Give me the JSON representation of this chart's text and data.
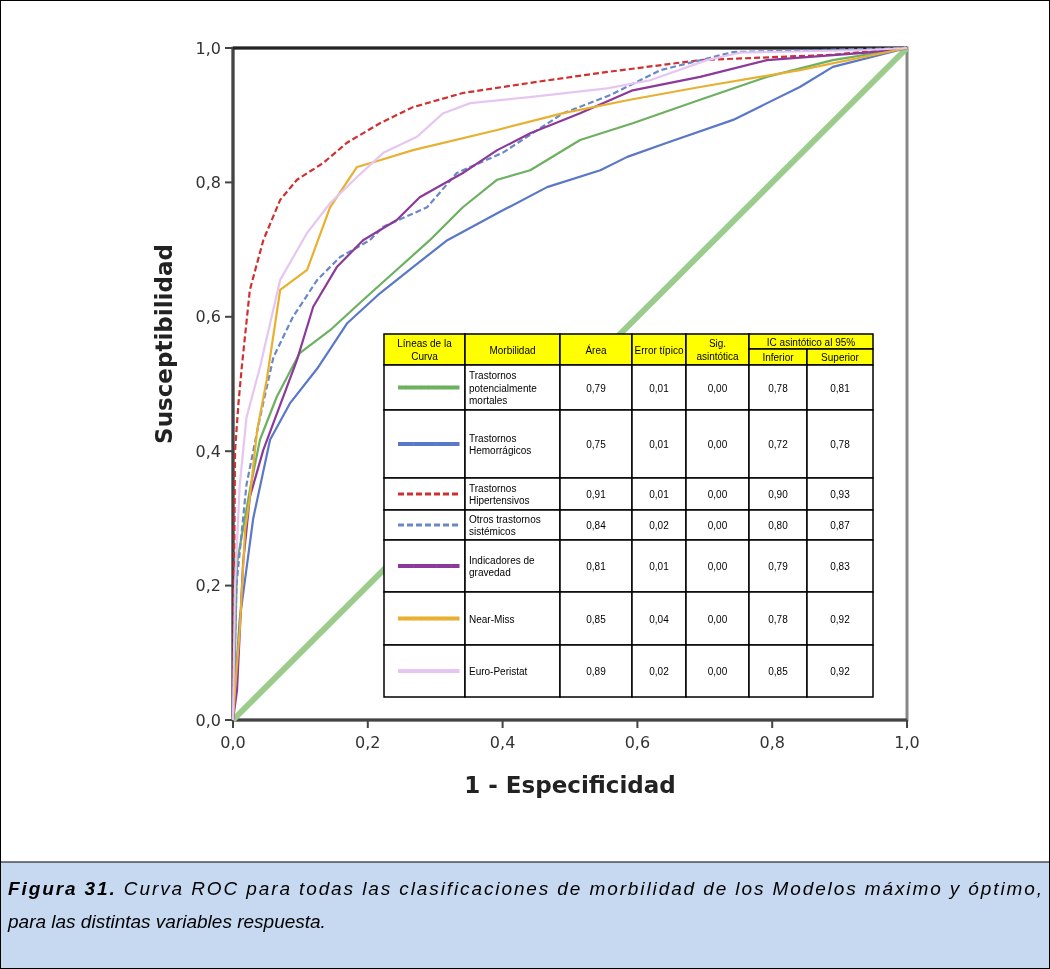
{
  "chart_data": {
    "type": "line",
    "xlabel": "1 - Especificidad",
    "ylabel": "Susceptibilidad",
    "xlim": [
      0,
      1
    ],
    "ylim": [
      0,
      1
    ],
    "xticks": [
      {
        "value": 0,
        "label": "0,0"
      },
      {
        "value": 0.2,
        "label": "0,2"
      },
      {
        "value": 0.4,
        "label": "0,4"
      },
      {
        "value": 0.6,
        "label": "0,6"
      },
      {
        "value": 0.8,
        "label": "0,8"
      },
      {
        "value": 1,
        "label": "1,0"
      }
    ],
    "yticks": [
      {
        "value": 0,
        "label": "0,0"
      },
      {
        "value": 0.2,
        "label": "0,2"
      },
      {
        "value": 0.4,
        "label": "0,4"
      },
      {
        "value": 0.6,
        "label": "0,6"
      },
      {
        "value": 0.8,
        "label": "0,8"
      },
      {
        "value": 1,
        "label": "1,0"
      }
    ],
    "grid": false,
    "legend": "bottom",
    "line_style": "solid",
    "marker": "none",
    "series": [
      {
        "color": "#9ccc8c",
        "x": [
          0,
          1
        ],
        "values": [
          0,
          1
        ]
      },
      {
        "name": "Trastornos potencialmente mortales",
        "color": "#6cb060",
        "x": [
          0,
          0.003,
          0.006,
          0.025,
          0.04,
          0.065,
          0.099,
          0.144,
          0.193,
          0.243,
          0.292,
          0.341,
          0.392,
          0.441,
          0.515,
          0.593,
          0.693,
          0.792,
          0.89,
          1
        ],
        "values": [
          0,
          0.1,
          0.234,
          0.342,
          0.417,
          0.481,
          0.546,
          0.58,
          0.625,
          0.67,
          0.714,
          0.763,
          0.804,
          0.818,
          0.863,
          0.888,
          0.923,
          0.957,
          0.982,
          1
        ]
      },
      {
        "name": "Trastornos Hemorrágicos",
        "color": "#5a78c8",
        "x": [
          0,
          0.01,
          0.03,
          0.055,
          0.085,
          0.125,
          0.169,
          0.218,
          0.267,
          0.318,
          0.392,
          0.466,
          0.545,
          0.585,
          0.644,
          0.742,
          0.841,
          0.89,
          1
        ],
        "values": [
          0,
          0.15,
          0.3,
          0.417,
          0.472,
          0.523,
          0.59,
          0.635,
          0.674,
          0.714,
          0.754,
          0.793,
          0.818,
          0.838,
          0.859,
          0.893,
          0.942,
          0.972,
          1
        ]
      },
      {
        "name": "Trastornos Hipertensivos",
        "color": "#d03030",
        "line_style": "dashed",
        "x": [
          0,
          0.003,
          0.008,
          0.013,
          0.025,
          0.045,
          0.07,
          0.095,
          0.134,
          0.169,
          0.218,
          0.267,
          0.341,
          0.44,
          0.545,
          0.693,
          0.89,
          1
        ],
        "values": [
          0,
          0.4,
          0.47,
          0.525,
          0.64,
          0.714,
          0.774,
          0.804,
          0.829,
          0.859,
          0.888,
          0.912,
          0.933,
          0.948,
          0.963,
          0.982,
          0.99,
          1
        ]
      },
      {
        "name": "Otros trastornos sistémicos",
        "color": "#6a88c8",
        "line_style": "dashed",
        "x": [
          0,
          0.005,
          0.02,
          0.04,
          0.06,
          0.089,
          0.125,
          0.159,
          0.203,
          0.223,
          0.288,
          0.332,
          0.4,
          0.49,
          0.56,
          0.634,
          0.742,
          1
        ],
        "values": [
          0,
          0.2,
          0.35,
          0.45,
          0.54,
          0.6,
          0.655,
          0.689,
          0.714,
          0.734,
          0.763,
          0.814,
          0.844,
          0.903,
          0.93,
          0.967,
          0.994,
          1
        ]
      },
      {
        "name": "Indicadores de gravedad",
        "color": "#8b3a9a",
        "x": [
          0,
          0.006,
          0.015,
          0.025,
          0.045,
          0.095,
          0.119,
          0.154,
          0.193,
          0.243,
          0.277,
          0.341,
          0.392,
          0.441,
          0.515,
          0.593,
          0.693,
          0.792,
          0.94,
          1
        ],
        "values": [
          0,
          0.045,
          0.234,
          0.332,
          0.402,
          0.536,
          0.615,
          0.674,
          0.714,
          0.744,
          0.778,
          0.814,
          0.848,
          0.873,
          0.903,
          0.937,
          0.957,
          0.982,
          0.993,
          1
        ]
      },
      {
        "name": "Near-Miss",
        "color": "#e8b030",
        "x": [
          0,
          0.003,
          0.01,
          0.018,
          0.025,
          0.036,
          0.05,
          0.07,
          0.11,
          0.144,
          0.184,
          0.218,
          0.267,
          0.392,
          0.49,
          0.589,
          0.693,
          0.841,
          1
        ],
        "values": [
          0,
          0.045,
          0.134,
          0.283,
          0.332,
          0.432,
          0.506,
          0.64,
          0.67,
          0.763,
          0.823,
          0.833,
          0.848,
          0.878,
          0.903,
          0.923,
          0.942,
          0.967,
          1
        ]
      },
      {
        "name": "Euro-Peristat",
        "color": "#e6c6f0",
        "x": [
          0,
          0.003,
          0.01,
          0.02,
          0.04,
          0.07,
          0.11,
          0.144,
          0.184,
          0.223,
          0.273,
          0.312,
          0.352,
          0.44,
          0.555,
          0.619,
          0.703,
          0.752,
          0.94,
          1
        ],
        "values": [
          0,
          0.2,
          0.35,
          0.45,
          0.525,
          0.655,
          0.725,
          0.769,
          0.808,
          0.844,
          0.868,
          0.903,
          0.918,
          0.927,
          0.94,
          0.952,
          0.982,
          0.993,
          0.997,
          1
        ]
      }
    ],
    "annotations": [
      "Figura 31. Curva ROC para todas las clasificaciones de morbilidad de los Modelos máximo y óptimo, para las distintas variables respuesta.",
      "Líneas de la Curva",
      "Morbilidad",
      "Área",
      "Error típico",
      "Sig. asintótica",
      "IC asintótico al 95%",
      "Inferior",
      "Superior",
      "0,79",
      "0,01",
      "0,00",
      "0,78",
      "0,81",
      "0,75",
      "0,01",
      "0,00",
      "0,72",
      "0,78",
      "0,91",
      "0,01",
      "0,00",
      "0,90",
      "0,93",
      "0,84",
      "0,02",
      "0,00",
      "0,80",
      "0,87",
      "0,81",
      "0,01",
      "0,00",
      "0,79",
      "0,83",
      "0,85",
      "0,04",
      "0,00",
      "0,78",
      "0,92",
      "0,89",
      "0,02",
      "0,00",
      "0,85",
      "0,92"
    ]
  }
}
